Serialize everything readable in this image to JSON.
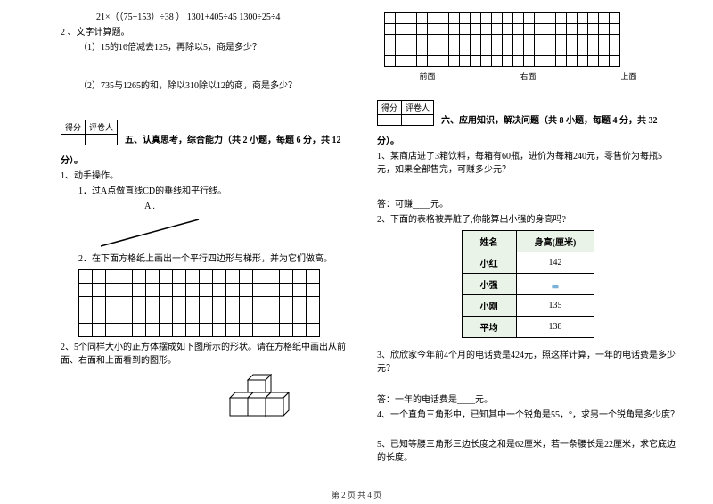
{
  "left": {
    "p1": "21×（（75+153）÷38 ）      1301+405÷45        1300÷25÷4",
    "p2": "2 、文字计算题。",
    "p3": "（1）15的16倍减去125，再除以5，商是多少？",
    "p4": "（2）735与1265的和，除以310除以12的商，商是多少？",
    "scoreHead1": "得分",
    "scoreHead2": "评卷人",
    "section5": "五、认真思考，综合能力（共 2 小题，每题 6 分，共 12",
    "fen": "分）。",
    "q1": "1、动手操作。",
    "q1a": "1．过A点做直线CD的垂线和平行线。",
    "pointA": "A .",
    "q1b": "2．在下面方格纸上画出一个平行四边形与梯形，并为它们做高。",
    "q2": "2、5个同样大小的正方体摆成如下图所示的形状。请在方格纸中画出从前面、右面和上面看到的图形。"
  },
  "right": {
    "viewsLabel1": "前面",
    "viewsLabel2": "右面",
    "viewsLabel3": "上面",
    "scoreHead1": "得分",
    "scoreHead2": "评卷人",
    "section6": "六、应用知识，解决问题（共 8 小题，每题 4 分，共 32",
    "fen": "分）。",
    "q1": "1、某商店进了3箱饮料，每箱有60瓶，进价为每箱240元，零售价为每瓶5元，如果全部售完，可赚多少元？",
    "a1": "答：可赚____元。",
    "q2": "2、下面的表格被弄脏了,你能算出小强的身高吗?",
    "th1": "姓名",
    "th2": "身高(厘米)",
    "r1a": "小红",
    "r1b": "142",
    "r2a": "小强",
    "r2b": "",
    "r3a": "小刚",
    "r3b": "135",
    "r4a": "平均",
    "r4b": "138",
    "q3": "3、欣欣家今年前4个月的电话费是424元，照这样计算，一年的电话费是多少元？",
    "a3": "答：一年的电话费是____元。",
    "q4": "4、一个直角三角形中，已知其中一个锐角是55，°，求另一个锐角是多少度？",
    "q5": "5、已知等腰三角形三边长度之和是62厘米，若一条腰长是22厘米，求它底边的长度。"
  },
  "footer": "第 2 页 共 4 页",
  "grids": {
    "left1": {
      "rows": 5,
      "cols": 18
    },
    "right1": {
      "rows": 5,
      "cols": 22
    }
  }
}
